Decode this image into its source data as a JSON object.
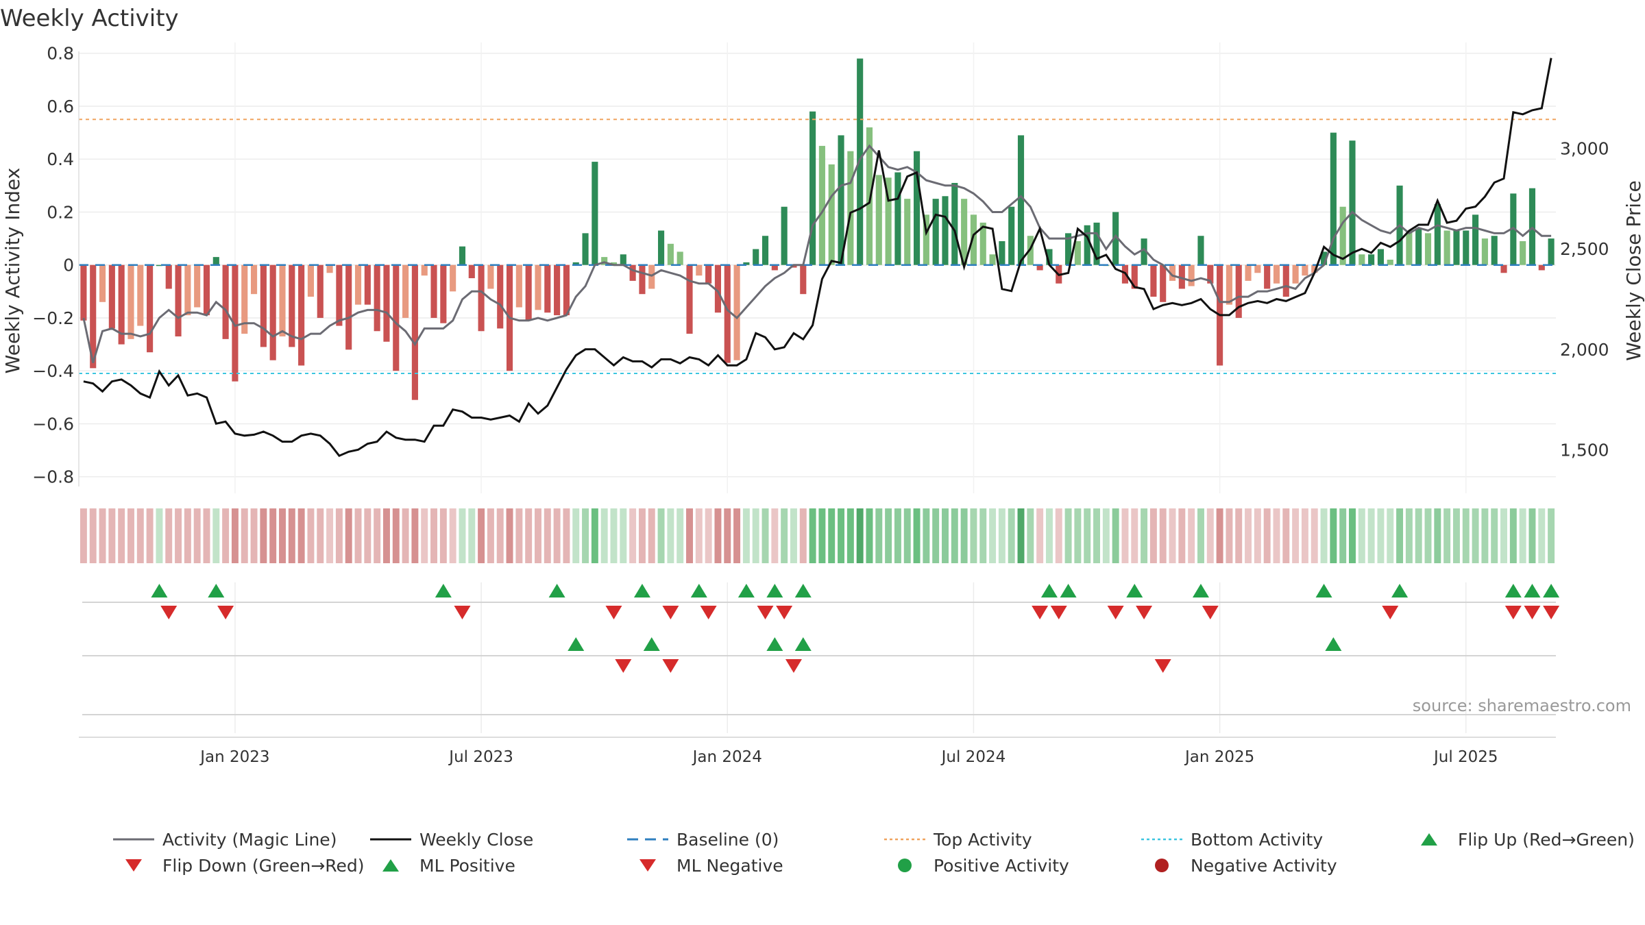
{
  "chart_data": {
    "type": "bar",
    "title": "Weekly Activity",
    "ylabel": "Weekly Activity Index",
    "y2label": "Weekly Close Price",
    "source": "source: sharemaestro.com",
    "ylim": [
      -0.85,
      0.82
    ],
    "y2lim": [
      1300,
      3500
    ],
    "yticks": [
      {
        "v": 0.8,
        "label": "0.8"
      },
      {
        "v": 0.6,
        "label": "0.6"
      },
      {
        "v": 0.4,
        "label": "0.4"
      },
      {
        "v": 0.2,
        "label": "0.2"
      },
      {
        "v": 0,
        "label": "0"
      },
      {
        "v": -0.2,
        "label": "−0.2"
      },
      {
        "v": -0.4,
        "label": "−0.4"
      },
      {
        "v": -0.6,
        "label": "−0.6"
      },
      {
        "v": -0.8,
        "label": "−0.8"
      }
    ],
    "y2ticks": [
      {
        "v": 3000,
        "label": "3,000"
      },
      {
        "v": 2500,
        "label": "2,500"
      },
      {
        "v": 2000,
        "label": "2,000"
      },
      {
        "v": 1500,
        "label": "1,500"
      }
    ],
    "xticks": [
      {
        "week": 16,
        "label": "Jan 2023"
      },
      {
        "week": 42,
        "label": "Jul 2023"
      },
      {
        "week": 68,
        "label": "Jan 2024"
      },
      {
        "week": 94,
        "label": "Jul 2024"
      },
      {
        "week": 120,
        "label": "Jan 2025"
      },
      {
        "week": 146,
        "label": "Jul 2025"
      }
    ],
    "top_activity": 0.55,
    "bottom_activity": -0.41,
    "activity": [
      -0.21,
      -0.39,
      -0.14,
      -0.24,
      -0.3,
      -0.28,
      -0.23,
      -0.33,
      0,
      -0.09,
      -0.27,
      -0.19,
      -0.16,
      -0.19,
      0.03,
      -0.28,
      -0.44,
      -0.26,
      -0.11,
      -0.31,
      -0.36,
      -0.27,
      -0.31,
      -0.38,
      -0.12,
      -0.2,
      -0.03,
      -0.23,
      -0.32,
      -0.15,
      -0.15,
      -0.25,
      -0.29,
      -0.4,
      -0.2,
      -0.51,
      -0.04,
      -0.2,
      -0.22,
      -0.1,
      0.07,
      -0.05,
      -0.25,
      -0.09,
      -0.24,
      -0.4,
      -0.16,
      -0.21,
      -0.17,
      -0.18,
      -0.19,
      -0.19,
      0.01,
      0.12,
      0.39,
      0.03,
      0.01,
      0.04,
      -0.06,
      -0.11,
      -0.09,
      0.13,
      0.08,
      0.05,
      -0.26,
      -0.04,
      -0.07,
      -0.18,
      -0.37,
      -0.36,
      0.01,
      0.06,
      0.11,
      -0.02,
      0.22,
      -0.01,
      -0.11,
      0.58,
      0.45,
      0.38,
      0.49,
      0.43,
      0.78,
      0.52,
      0.34,
      0.33,
      0.35,
      0.25,
      0.43,
      0.19,
      0.25,
      0.26,
      0.31,
      0.25,
      0.19,
      0.16,
      0.04,
      0.09,
      0.22,
      0.49,
      0.11,
      -0.02,
      0.06,
      -0.07,
      0.12,
      0.09,
      0.15,
      0.16,
      0.0,
      0.2,
      -0.07,
      -0.09,
      0.1,
      -0.12,
      -0.14,
      -0.06,
      -0.09,
      -0.08,
      0.11,
      -0.07,
      -0.38,
      -0.15,
      -0.2,
      -0.06,
      -0.03,
      -0.09,
      -0.07,
      -0.12,
      -0.07,
      -0.04,
      -0.03,
      0.05,
      0.5,
      0.22,
      0.47,
      0.04,
      0.04,
      0.06,
      0.02,
      0.3,
      0.13,
      0.14,
      0.12,
      0.23,
      0.13,
      0.13,
      0.13,
      0.19,
      0.1,
      0.11,
      -0.03,
      0.27,
      0.09,
      0.29,
      -0.02,
      0.1
    ],
    "magic_line": [
      -0.2,
      -0.37,
      -0.25,
      -0.24,
      -0.26,
      -0.26,
      -0.27,
      -0.26,
      -0.2,
      -0.17,
      -0.2,
      -0.18,
      -0.18,
      -0.19,
      -0.14,
      -0.17,
      -0.23,
      -0.22,
      -0.22,
      -0.24,
      -0.27,
      -0.25,
      -0.27,
      -0.28,
      -0.26,
      -0.26,
      -0.23,
      -0.21,
      -0.2,
      -0.18,
      -0.17,
      -0.17,
      -0.18,
      -0.22,
      -0.25,
      -0.3,
      -0.24,
      -0.24,
      -0.24,
      -0.21,
      -0.13,
      -0.1,
      -0.1,
      -0.13,
      -0.15,
      -0.2,
      -0.21,
      -0.21,
      -0.2,
      -0.21,
      -0.2,
      -0.19,
      -0.12,
      -0.08,
      0.0,
      0.01,
      0.0,
      0.0,
      -0.02,
      -0.03,
      -0.04,
      -0.02,
      -0.03,
      -0.04,
      -0.06,
      -0.07,
      -0.07,
      -0.1,
      -0.17,
      -0.2,
      -0.16,
      -0.12,
      -0.08,
      -0.05,
      -0.03,
      0.0,
      0.0,
      0.15,
      0.2,
      0.26,
      0.3,
      0.31,
      0.4,
      0.45,
      0.41,
      0.37,
      0.36,
      0.37,
      0.35,
      0.32,
      0.31,
      0.3,
      0.3,
      0.29,
      0.27,
      0.24,
      0.2,
      0.2,
      0.23,
      0.26,
      0.22,
      0.14,
      0.1,
      0.1,
      0.1,
      0.11,
      0.12,
      0.12,
      0.06,
      0.11,
      0.07,
      0.04,
      0.06,
      0.02,
      0.0,
      -0.04,
      -0.05,
      -0.06,
      -0.05,
      -0.06,
      -0.14,
      -0.14,
      -0.12,
      -0.12,
      -0.1,
      -0.1,
      -0.09,
      -0.08,
      -0.09,
      -0.05,
      -0.03,
      0.0,
      0.1,
      0.16,
      0.2,
      0.17,
      0.15,
      0.13,
      0.12,
      0.15,
      0.12,
      0.14,
      0.13,
      0.15,
      0.14,
      0.13,
      0.14,
      0.14,
      0.13,
      0.12,
      0.12,
      0.14,
      0.11,
      0.14,
      0.11,
      0.11
    ],
    "weekly_close": [
      1840,
      1830,
      1790,
      1840,
      1850,
      1820,
      1780,
      1760,
      1890,
      1820,
      1870,
      1770,
      1780,
      1760,
      1630,
      1640,
      1580,
      1570,
      1575,
      1590,
      1570,
      1540,
      1540,
      1570,
      1580,
      1570,
      1530,
      1470,
      1490,
      1500,
      1530,
      1540,
      1590,
      1560,
      1550,
      1550,
      1540,
      1620,
      1620,
      1700,
      1690,
      1660,
      1660,
      1650,
      1660,
      1670,
      1640,
      1730,
      1680,
      1720,
      1810,
      1900,
      1970,
      2000,
      2000,
      1960,
      1920,
      1960,
      1940,
      1940,
      1910,
      1950,
      1950,
      1930,
      1960,
      1950,
      1920,
      1970,
      1920,
      1920,
      1950,
      2080,
      2060,
      2000,
      2010,
      2080,
      2050,
      2120,
      2350,
      2440,
      2430,
      2680,
      2700,
      2730,
      2990,
      2740,
      2750,
      2860,
      2880,
      2580,
      2670,
      2660,
      2590,
      2410,
      2570,
      2610,
      2600,
      2300,
      2290,
      2440,
      2500,
      2600,
      2420,
      2370,
      2380,
      2600,
      2560,
      2450,
      2470,
      2400,
      2380,
      2310,
      2300,
      2200,
      2220,
      2230,
      2220,
      2230,
      2250,
      2200,
      2170,
      2170,
      2210,
      2230,
      2240,
      2230,
      2250,
      2240,
      2260,
      2280,
      2380,
      2510,
      2470,
      2450,
      2480,
      2500,
      2480,
      2530,
      2510,
      2540,
      2590,
      2620,
      2620,
      2740,
      2630,
      2640,
      2700,
      2710,
      2760,
      2830,
      2850,
      3180,
      3170,
      3190,
      3200,
      3450
    ],
    "ribbon_colors": [
      "#e4b5b5",
      "#e4b5b5",
      "#e4b5b5",
      "#e4b5b5",
      "#e4b5b5",
      "#e4b5b5",
      "#e4b5b5",
      "#e4b5b5",
      "#c2e3c9",
      "#e4b5b5",
      "#e4b5b5",
      "#e4b5b5",
      "#e4b5b5",
      "#e4b5b5",
      "#c2e3c9",
      "#e4b5b5",
      "#d69191",
      "#e4b5b5",
      "#e4b5b5",
      "#d69191",
      "#d69191",
      "#d69191",
      "#d69191",
      "#d69191",
      "#e4b5b5",
      "#e4b5b5",
      "#eac6c6",
      "#e4b5b5",
      "#d69191",
      "#e4b5b5",
      "#e4b5b5",
      "#e4b5b5",
      "#d69191",
      "#d69191",
      "#e4b5b5",
      "#d69191",
      "#eac6c6",
      "#e4b5b5",
      "#e4b5b5",
      "#eac6c6",
      "#c2e3c9",
      "#c2e3c9",
      "#d69191",
      "#e4b5b5",
      "#e4b5b5",
      "#d69191",
      "#e4b5b5",
      "#e4b5b5",
      "#e4b5b5",
      "#e4b5b5",
      "#e4b5b5",
      "#e4b5b5",
      "#c2e3c9",
      "#a6d6b0",
      "#6bbf81",
      "#c2e3c9",
      "#c2e3c9",
      "#c2e3c9",
      "#eac6c6",
      "#e4b5b5",
      "#e4b5b5",
      "#a6d6b0",
      "#c2e3c9",
      "#c2e3c9",
      "#d69191",
      "#eac6c6",
      "#eac6c6",
      "#d69191",
      "#d69191",
      "#d69191",
      "#c2e3c9",
      "#c2e3c9",
      "#a6d6b0",
      "#eac6c6",
      "#a6d6b0",
      "#c2e3c9",
      "#e4b5b5",
      "#6bbf81",
      "#6bbf81",
      "#6bbf81",
      "#6bbf81",
      "#6bbf81",
      "#4fa868",
      "#6bbf81",
      "#8ccb9b",
      "#8ccb9b",
      "#8ccb9b",
      "#8ccb9b",
      "#6bbf81",
      "#8ccb9b",
      "#8ccb9b",
      "#8ccb9b",
      "#8ccb9b",
      "#8ccb9b",
      "#a6d6b0",
      "#a6d6b0",
      "#c2e3c9",
      "#c2e3c9",
      "#a6d6b0",
      "#4fa868",
      "#a6d6b0",
      "#eac6c6",
      "#c2e3c9",
      "#eac6c6",
      "#a6d6b0",
      "#a6d6b0",
      "#a6d6b0",
      "#a6d6b0",
      "#c2e3c9",
      "#8ccb9b",
      "#eac6c6",
      "#eac6c6",
      "#a6d6b0",
      "#e4b5b5",
      "#e4b5b5",
      "#eac6c6",
      "#e4b5b5",
      "#eac6c6",
      "#a6d6b0",
      "#eac6c6",
      "#d69191",
      "#e4b5b5",
      "#e4b5b5",
      "#eac6c6",
      "#eac6c6",
      "#e4b5b5",
      "#eac6c6",
      "#e4b5b5",
      "#eac6c6",
      "#eac6c6",
      "#eac6c6",
      "#c2e3c9",
      "#6bbf81",
      "#8ccb9b",
      "#6bbf81",
      "#c2e3c9",
      "#c2e3c9",
      "#c2e3c9",
      "#c2e3c9",
      "#8ccb9b",
      "#a6d6b0",
      "#a6d6b0",
      "#a6d6b0",
      "#8ccb9b",
      "#a6d6b0",
      "#a6d6b0",
      "#a6d6b0",
      "#a6d6b0",
      "#a6d6b0",
      "#a6d6b0",
      "#c2e3c9",
      "#8ccb9b",
      "#c2e3c9",
      "#8ccb9b",
      "#c2e3c9",
      "#a6d6b0"
    ],
    "flip_up_weeks": [
      8,
      14,
      38,
      50,
      59,
      65,
      70,
      73,
      76,
      102,
      104,
      111,
      118,
      131,
      139,
      151,
      153,
      155
    ],
    "flip_down_weeks": [
      9,
      15,
      40,
      56,
      62,
      66,
      72,
      74,
      101,
      103,
      109,
      112,
      119,
      138,
      151,
      153,
      155
    ],
    "ml_positive_weeks": [
      52,
      60,
      73,
      76,
      132
    ],
    "ml_negative_weeks": [
      57,
      62,
      75,
      114
    ],
    "legend": [
      {
        "label": "Activity (Magic Line)",
        "symbol": "line",
        "color": "#6b6b73"
      },
      {
        "label": "Weekly Close",
        "symbol": "line",
        "color": "#111111"
      },
      {
        "label": "Baseline (0)",
        "symbol": "dash",
        "color": "#2f7fbf"
      },
      {
        "label": "Top Activity",
        "symbol": "dot",
        "color": "#f0a35e"
      },
      {
        "label": "Bottom Activity",
        "symbol": "dot",
        "color": "#3cc6e0"
      },
      {
        "label": "Flip Up (Red→Green)",
        "symbol": "tri-up",
        "color": "#21a047"
      },
      {
        "label": "Flip Down (Green→Red)",
        "symbol": "tri-down",
        "color": "#d62b2b"
      },
      {
        "label": "ML Positive",
        "symbol": "tri-up",
        "color": "#21a047"
      },
      {
        "label": "ML Negative",
        "symbol": "tri-down",
        "color": "#d62b2b"
      },
      {
        "label": "Positive Activity",
        "symbol": "circle",
        "color": "#21a047"
      },
      {
        "label": "Negative Activity",
        "symbol": "circle",
        "color": "#b02020"
      }
    ]
  }
}
